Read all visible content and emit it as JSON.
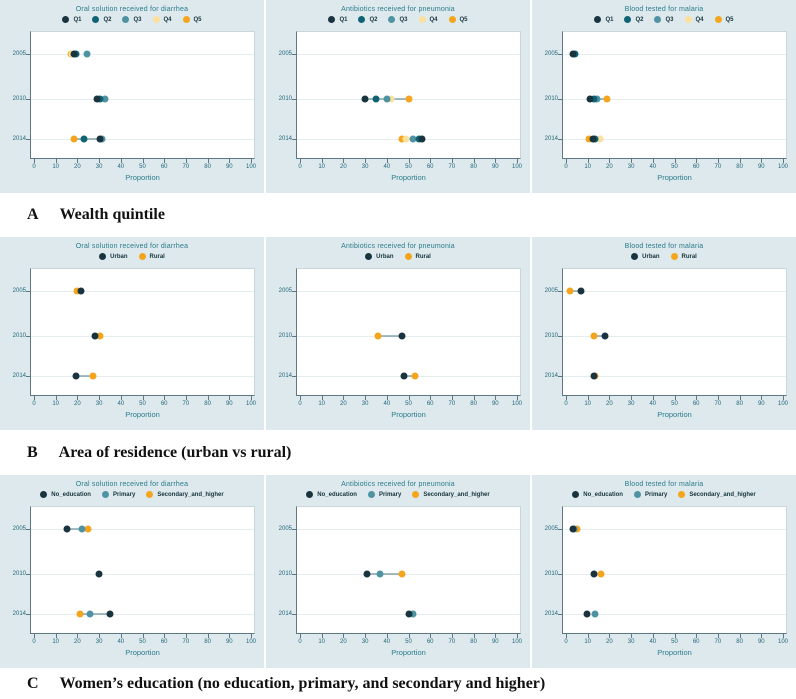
{
  "page": {
    "background": "#ffffff",
    "panel_background": "#dde9ec",
    "plot_background": "#ffffff"
  },
  "colors": {
    "accent_teal_text": "#2b7c8d",
    "tick_text": "#24677a",
    "axis_line": "#5d7884",
    "gridline": "#e6edef",
    "connector": "#4a7a85",
    "q1_dark": "#19343f",
    "q2_teal_dark": "#0f6375",
    "q3_teal": "#4f93a3",
    "q4_pale_yellow": "#fbe09e",
    "q5_amber": "#f4a51c"
  },
  "axis": {
    "xlabel": "Proportion",
    "xlim": [
      0,
      100
    ],
    "xticks": [
      0,
      10,
      20,
      30,
      40,
      50,
      60,
      70,
      80,
      90,
      100
    ],
    "years": [
      "2005",
      "2010",
      "2014"
    ],
    "grid": "horizontal"
  },
  "sections": [
    {
      "id": "A",
      "label": "A",
      "title": "Wealth quintile"
    },
    {
      "id": "B",
      "label": "B",
      "title": "Area of residence (urban vs rural)"
    },
    {
      "id": "C",
      "label": "C",
      "title": "Women’s education (no education, primary, and secondary and higher)"
    }
  ],
  "chart_data": [
    {
      "section": "A",
      "type": "scatter",
      "title": "Oral solution received for diarrhea",
      "series": [
        {
          "name": "Q1",
          "color": "#19343f"
        },
        {
          "name": "Q2",
          "color": "#0f6375"
        },
        {
          "name": "Q3",
          "color": "#4f93a3"
        },
        {
          "name": "Q4",
          "color": "#fbe09e"
        },
        {
          "name": "Q5",
          "color": "#f4a51c"
        }
      ],
      "rows": [
        {
          "year": "2005",
          "values": {
            "Q1": 18.5,
            "Q2": 19.5,
            "Q3": 24.5,
            "Q4": 17.5,
            "Q5": 17
          },
          "line": [
            17,
            19.5
          ]
        },
        {
          "year": "2010",
          "values": {
            "Q1": 29,
            "Q2": 30.5,
            "Q3": 32.5
          },
          "line": null
        },
        {
          "year": "2014",
          "values": {
            "Q1": 30.5,
            "Q2": 23,
            "Q3": 31.5,
            "Q5": 18.5
          },
          "line": [
            18.5,
            30.5
          ]
        }
      ]
    },
    {
      "section": "A",
      "type": "scatter",
      "title": "Antibiotics received for pneumonia",
      "series": [
        {
          "name": "Q1",
          "color": "#19343f"
        },
        {
          "name": "Q2",
          "color": "#0f6375"
        },
        {
          "name": "Q3",
          "color": "#4f93a3"
        },
        {
          "name": "Q4",
          "color": "#fbe09e"
        },
        {
          "name": "Q5",
          "color": "#f4a51c"
        }
      ],
      "rows": [
        {
          "year": "2005",
          "values": {},
          "line": null
        },
        {
          "year": "2010",
          "values": {
            "Q1": 30,
            "Q2": 35,
            "Q3": 40,
            "Q4": 42,
            "Q5": 50
          },
          "line": [
            30,
            50
          ]
        },
        {
          "year": "2014",
          "values": {
            "Q1": 56,
            "Q2": 55,
            "Q3": 52,
            "Q4": 49,
            "Q5": 47
          },
          "line": [
            47,
            56
          ]
        }
      ]
    },
    {
      "section": "A",
      "type": "scatter",
      "title": "Blood tested for malaria",
      "series": [
        {
          "name": "Q1",
          "color": "#19343f"
        },
        {
          "name": "Q2",
          "color": "#0f6375"
        },
        {
          "name": "Q3",
          "color": "#4f93a3"
        },
        {
          "name": "Q4",
          "color": "#fbe09e"
        },
        {
          "name": "Q5",
          "color": "#f4a51c"
        }
      ],
      "rows": [
        {
          "year": "2005",
          "values": {
            "Q1": 3,
            "Q2": 4
          },
          "line": null
        },
        {
          "year": "2010",
          "values": {
            "Q1": 11,
            "Q2": 13,
            "Q3": 14.5,
            "Q5": 19
          },
          "line": [
            11,
            19
          ]
        },
        {
          "year": "2014",
          "values": {
            "Q1": 12.5,
            "Q2": 13.5,
            "Q4": 15.5,
            "Q5": 10.5
          },
          "line": null
        }
      ]
    },
    {
      "section": "B",
      "type": "scatter",
      "title": "Oral solution received for diarrhea",
      "series": [
        {
          "name": "Urban",
          "color": "#19343f"
        },
        {
          "name": "Rural",
          "color": "#f4a51c"
        }
      ],
      "rows": [
        {
          "year": "2005",
          "values": {
            "Urban": 21.5,
            "Rural": 20
          },
          "line": null
        },
        {
          "year": "2010",
          "values": {
            "Urban": 28,
            "Rural": 30.5
          },
          "line": null
        },
        {
          "year": "2014",
          "values": {
            "Urban": 19.5,
            "Rural": 27
          },
          "line": [
            19.5,
            27
          ]
        }
      ]
    },
    {
      "section": "B",
      "type": "scatter",
      "title": "Antibiotics received for pneumonia",
      "series": [
        {
          "name": "Urban",
          "color": "#19343f"
        },
        {
          "name": "Rural",
          "color": "#f4a51c"
        }
      ],
      "rows": [
        {
          "year": "2005",
          "values": {},
          "line": null
        },
        {
          "year": "2010",
          "values": {
            "Urban": 47,
            "Rural": 36
          },
          "line": [
            36,
            47
          ]
        },
        {
          "year": "2014",
          "values": {
            "Urban": 48,
            "Rural": 53
          },
          "line": [
            48,
            53
          ]
        }
      ]
    },
    {
      "section": "B",
      "type": "scatter",
      "title": "Blood tested for malaria",
      "series": [
        {
          "name": "Urban",
          "color": "#19343f"
        },
        {
          "name": "Rural",
          "color": "#f4a51c"
        }
      ],
      "rows": [
        {
          "year": "2005",
          "values": {
            "Urban": 7,
            "Rural": 2
          },
          "line": [
            2,
            7
          ]
        },
        {
          "year": "2010",
          "values": {
            "Urban": 18,
            "Rural": 13
          },
          "line": [
            13,
            18
          ]
        },
        {
          "year": "2014",
          "values": {
            "Urban": 13,
            "Rural": 13.5
          },
          "line": null
        }
      ]
    },
    {
      "section": "C",
      "type": "scatter",
      "title": "Oral solution received for diarrhea",
      "series": [
        {
          "name": "No_education",
          "color": "#19343f"
        },
        {
          "name": "Primary",
          "color": "#4f93a3"
        },
        {
          "name": "Secondary_and_higher",
          "color": "#f4a51c"
        }
      ],
      "rows": [
        {
          "year": "2005",
          "values": {
            "No_education": 15,
            "Primary": 22,
            "Secondary_and_higher": 25
          },
          "line": [
            15,
            25
          ]
        },
        {
          "year": "2010",
          "values": {
            "No_education": 30
          },
          "line": null
        },
        {
          "year": "2014",
          "values": {
            "No_education": 35,
            "Primary": 26,
            "Secondary_and_higher": 21
          },
          "line": [
            21,
            35
          ]
        }
      ]
    },
    {
      "section": "C",
      "type": "scatter",
      "title": "Antibiotics received for pneumonia",
      "series": [
        {
          "name": "No_education",
          "color": "#19343f"
        },
        {
          "name": "Primary",
          "color": "#4f93a3"
        },
        {
          "name": "Secondary_and_higher",
          "color": "#f4a51c"
        }
      ],
      "rows": [
        {
          "year": "2005",
          "values": {},
          "line": null
        },
        {
          "year": "2010",
          "values": {
            "No_education": 31,
            "Primary": 37,
            "Secondary_and_higher": 47
          },
          "line": [
            31,
            47
          ]
        },
        {
          "year": "2014",
          "values": {
            "No_education": 50,
            "Primary": 52
          },
          "line": null
        }
      ]
    },
    {
      "section": "C",
      "type": "scatter",
      "title": "Blood tested for malaria",
      "series": [
        {
          "name": "No_education",
          "color": "#19343f"
        },
        {
          "name": "Primary",
          "color": "#4f93a3"
        },
        {
          "name": "Secondary_and_higher",
          "color": "#f4a51c"
        }
      ],
      "rows": [
        {
          "year": "2005",
          "values": {
            "No_education": 3,
            "Primary": 3.5,
            "Secondary_and_higher": 5
          },
          "line": null
        },
        {
          "year": "2010",
          "values": {
            "No_education": 13,
            "Secondary_and_higher": 16
          },
          "line": null
        },
        {
          "year": "2014",
          "values": {
            "No_education": 9.5,
            "Primary": 13.5
          },
          "line": null
        }
      ]
    }
  ]
}
